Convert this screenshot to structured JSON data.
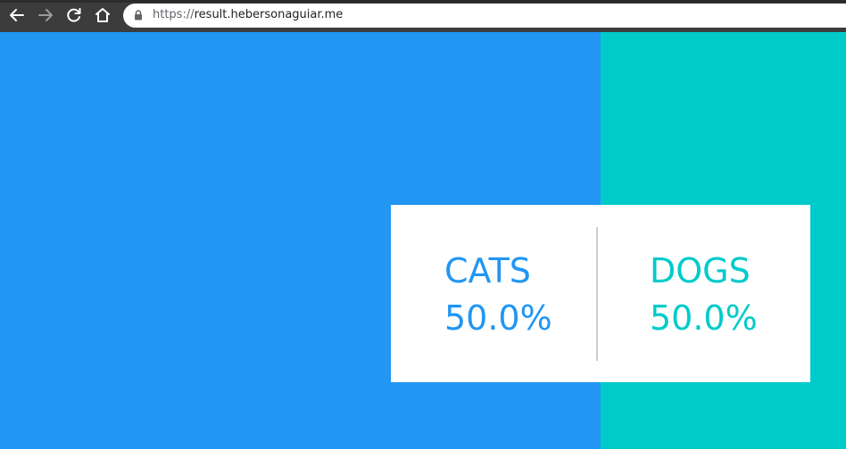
{
  "browser": {
    "url_scheme": "https://",
    "url_host": "result.hebersonaguiar.me",
    "icons": {
      "back": "arrow-left-icon",
      "forward": "arrow-right-icon",
      "reload": "reload-icon",
      "home": "home-icon",
      "lock": "lock-icon"
    }
  },
  "results": {
    "cats": {
      "label": "CATS",
      "percent_text": "50.0%",
      "percent": 50.0,
      "color": "#2196f3"
    },
    "dogs": {
      "label": "DOGS",
      "percent_text": "50.0%",
      "percent": 50.0,
      "color": "#00cbca"
    }
  }
}
